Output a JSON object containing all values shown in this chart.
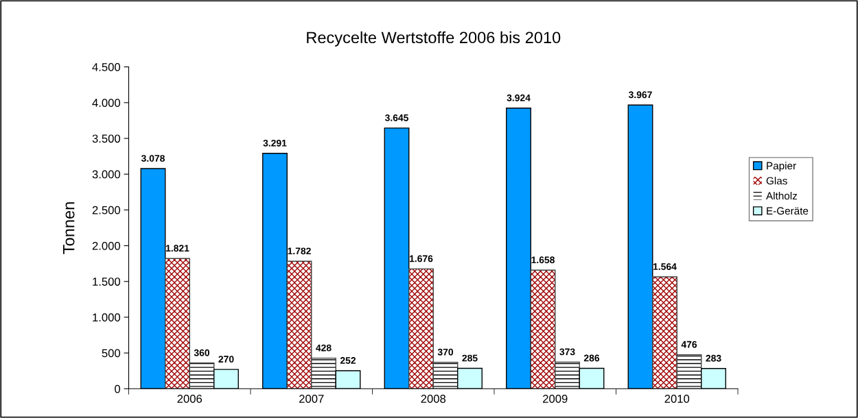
{
  "chart_data": {
    "type": "bar",
    "title": "Recycelte Wertstoffe 2006 bis 2010",
    "ylabel": "Tonnen",
    "categories": [
      "2006",
      "2007",
      "2008",
      "2009",
      "2010"
    ],
    "series": [
      {
        "name": "Papier",
        "color": "#0099ff",
        "values": [
          3078,
          3291,
          3645,
          3924,
          3967
        ],
        "value_labels": [
          "3.078",
          "3.291",
          "3.645",
          "3.924",
          "3.967"
        ]
      },
      {
        "name": "Glas",
        "color": "#a00000",
        "values": [
          1821,
          1782,
          1676,
          1658,
          1564
        ],
        "value_labels": [
          "1.821",
          "1.782",
          "1.676",
          "1.658",
          "1.564"
        ]
      },
      {
        "name": "Altholz",
        "color": "#000000",
        "values": [
          360,
          428,
          370,
          373,
          476
        ],
        "value_labels": [
          "360",
          "428",
          "370",
          "373",
          "476"
        ]
      },
      {
        "name": "E-Geräte",
        "color": "#ccffff",
        "values": [
          270,
          252,
          285,
          286,
          283
        ],
        "value_labels": [
          "270",
          "252",
          "285",
          "286",
          "283"
        ]
      }
    ],
    "ylim": [
      0,
      4500
    ],
    "yticks": [
      0,
      500,
      {
        "value": 1000,
        "label": "1.000"
      },
      {
        "value": 1500,
        "label": "1.500"
      },
      {
        "value": 2000,
        "label": "2.000"
      },
      {
        "value": 2500,
        "label": "2.500"
      },
      {
        "value": 3000,
        "label": "3.000"
      },
      {
        "value": 3500,
        "label": "3.500"
      },
      {
        "value": 4000,
        "label": "4.000"
      },
      {
        "value": 4500,
        "label": "4.500"
      }
    ],
    "grid": false,
    "legend": "right"
  }
}
